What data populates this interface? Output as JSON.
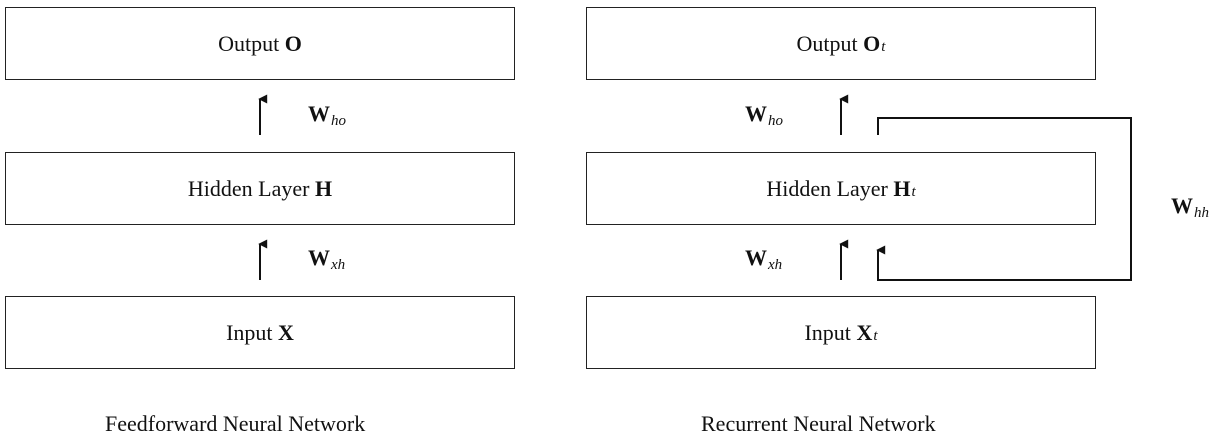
{
  "feedforward": {
    "output": {
      "label": "Output ",
      "symbol": "O",
      "sub": ""
    },
    "hidden": {
      "label": "Hidden Layer ",
      "symbol": "H",
      "sub": ""
    },
    "input": {
      "label": "Input ",
      "symbol": "X",
      "sub": ""
    },
    "w_ho": {
      "symbol": "W",
      "sub": "ho"
    },
    "w_xh": {
      "symbol": "W",
      "sub": "xh"
    },
    "caption": "Feedforward Neural Network"
  },
  "recurrent": {
    "output": {
      "label": "Output ",
      "symbol": "O",
      "sub": "t"
    },
    "hidden": {
      "label": "Hidden Layer ",
      "symbol": "H",
      "sub": "t"
    },
    "input": {
      "label": "Input ",
      "symbol": "X",
      "sub": "t"
    },
    "w_ho": {
      "symbol": "W",
      "sub": "ho"
    },
    "w_xh": {
      "symbol": "W",
      "sub": "xh"
    },
    "w_hh": {
      "symbol": "W",
      "sub": "hh"
    },
    "caption": "Recurrent Neural Network"
  }
}
